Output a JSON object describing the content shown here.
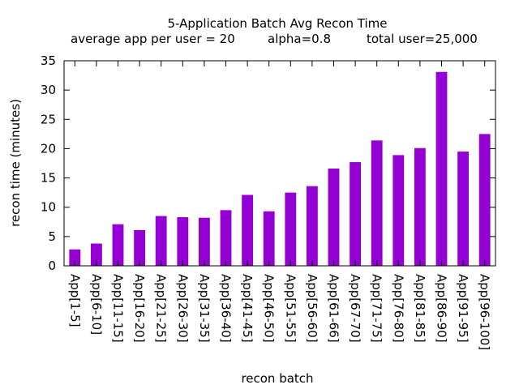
{
  "chart_data": {
    "type": "bar",
    "title": "5-Application Batch Avg Recon Time",
    "subtitle": {
      "avg_app": "average app per user = 20",
      "alpha": "alpha=0.8",
      "total_user": "total user=25,000"
    },
    "xlabel": "recon batch",
    "ylabel": "recon time (minutes)",
    "ylim": [
      0,
      35
    ],
    "yticks": [
      "0",
      "5",
      "10",
      "15",
      "20",
      "25",
      "30",
      "35"
    ],
    "categories": [
      "App[1-5]",
      "App[6-10]",
      "App[11-15]",
      "App[16-20]",
      "App[21-25]",
      "App[26-30]",
      "App[31-35]",
      "App[36-40]",
      "App[41-45]",
      "App[46-50]",
      "App[51-55]",
      "App[56-60]",
      "App[61-66]",
      "App[67-70]",
      "App[71-75]",
      "App[76-80]",
      "App[81-85]",
      "App[86-90]",
      "App[91-95]",
      "App[96-100]"
    ],
    "values": [
      2.8,
      3.8,
      7.1,
      6.1,
      8.5,
      8.3,
      8.2,
      9.5,
      12.1,
      9.3,
      12.5,
      13.6,
      16.6,
      17.7,
      21.4,
      18.9,
      20.1,
      33.1,
      19.5,
      22.5
    ],
    "bar_color": "#9400D3"
  }
}
